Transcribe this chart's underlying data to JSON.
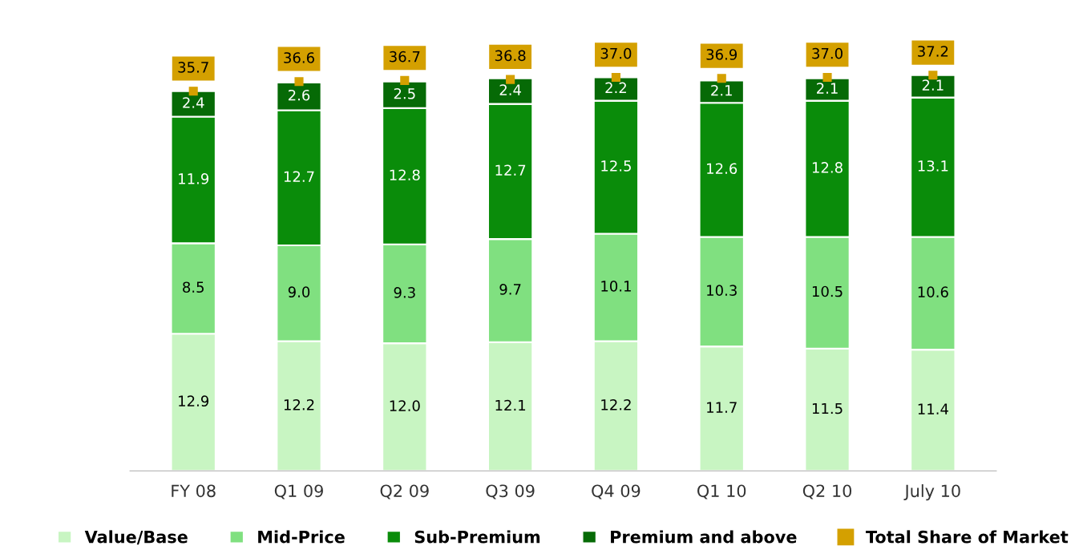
{
  "chart_data": {
    "type": "bar",
    "stacked": true,
    "data_labels": true,
    "legend": "bottom",
    "grid": false,
    "categories": [
      "FY 08",
      "Q1 09",
      "Q2 09",
      "Q3 09",
      "Q4 09",
      "Q1 10",
      "Q2 10",
      "July 10"
    ],
    "series": [
      {
        "name": "Value/Base",
        "color": "#c8f5c2",
        "values": [
          12.9,
          12.2,
          12.0,
          12.1,
          12.2,
          11.7,
          11.5,
          11.4
        ],
        "value_labels": [
          "12.9",
          "12.2",
          "12.0",
          "12.1",
          "12.2",
          "11.7",
          "11.5",
          "11.4"
        ]
      },
      {
        "name": "Mid-Price",
        "color": "#80e080",
        "values": [
          8.5,
          9.0,
          9.3,
          9.7,
          10.1,
          10.3,
          10.5,
          10.6
        ],
        "value_labels": [
          "8.5",
          "9.0",
          "9.3",
          "9.7",
          "10.1",
          "10.3",
          "10.5",
          "10.6"
        ]
      },
      {
        "name": "Sub-Premium",
        "color": "#0a8c0a",
        "values": [
          11.9,
          12.7,
          12.8,
          12.7,
          12.5,
          12.6,
          12.8,
          13.1
        ]
      },
      {
        "name": "Premium and above",
        "color": "#066a06",
        "values": [
          2.4,
          2.6,
          2.5,
          2.4,
          2.2,
          2.1,
          2.1,
          2.1
        ]
      },
      {
        "name": "Total Share of Market",
        "type": "scatter",
        "marker": "square",
        "color": "#d4a000",
        "values": [
          35.7,
          36.6,
          36.7,
          36.8,
          37.0,
          36.9,
          37.0,
          37.2
        ],
        "value_labels": [
          "35.7",
          "36.6",
          "36.7",
          "36.8",
          "37.0",
          "36.9",
          "37.0",
          "37.2"
        ]
      }
    ]
  }
}
